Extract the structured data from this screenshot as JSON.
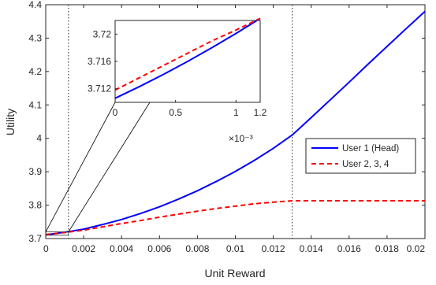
{
  "colors": {
    "series1": "#0000ff",
    "series2": "#ff0000",
    "axis": "#262626",
    "background": "#ffffff"
  },
  "chart_data": [
    {
      "type": "line",
      "xlabel": "Unit Reward",
      "ylabel": "Utility",
      "xlim": [
        0,
        0.02
      ],
      "ylim": [
        3.7,
        4.4
      ],
      "xticks": [
        "0",
        "0.002",
        "0.004",
        "0.006",
        "0.008",
        "0.01",
        "0.012",
        "0.014",
        "0.016",
        "0.018",
        "0.02"
      ],
      "yticks": [
        "3.7",
        "3.8",
        "3.9",
        "4",
        "4.1",
        "4.2",
        "4.3",
        "4.4"
      ],
      "grid": false,
      "legend_position": "right",
      "reference_lines_x": [
        0.0012,
        0.013
      ],
      "highlight_box": {
        "x": [
          0,
          0.0012
        ],
        "y": [
          3.71,
          3.72
        ]
      },
      "series": [
        {
          "name": "User 1 (Head)",
          "style": "solid",
          "x": [
            0,
            0.001,
            0.002,
            0.003,
            0.004,
            0.005,
            0.006,
            0.007,
            0.008,
            0.009,
            0.01,
            0.011,
            0.012,
            0.013,
            0.014,
            0.015,
            0.016,
            0.017,
            0.018,
            0.019,
            0.02
          ],
          "y": [
            3.711,
            3.719,
            3.728,
            3.742,
            3.757,
            3.775,
            3.795,
            3.818,
            3.843,
            3.871,
            3.901,
            3.934,
            3.97,
            4.01,
            4.062,
            4.115,
            4.168,
            4.222,
            4.275,
            4.328,
            4.38
          ]
        },
        {
          "name": "User 2, 3, 4",
          "style": "dashed",
          "x": [
            0,
            0.001,
            0.002,
            0.003,
            0.004,
            0.005,
            0.006,
            0.007,
            0.008,
            0.009,
            0.01,
            0.011,
            0.012,
            0.013,
            0.014,
            0.015,
            0.016,
            0.017,
            0.018,
            0.019,
            0.02
          ],
          "y": [
            3.712,
            3.718,
            3.725,
            3.735,
            3.745,
            3.754,
            3.764,
            3.773,
            3.782,
            3.79,
            3.797,
            3.804,
            3.809,
            3.813,
            3.813,
            3.813,
            3.813,
            3.813,
            3.813,
            3.813,
            3.813
          ]
        }
      ]
    },
    {
      "type": "line",
      "role": "inset",
      "xlim": [
        0,
        1.2
      ],
      "ylim": [
        3.71,
        3.722
      ],
      "xticks": [
        "0",
        "0.5",
        "1",
        "1.2"
      ],
      "yticks": [
        "3.712",
        "3.716",
        "3.72"
      ],
      "x_multiplier_label": "×10⁻³",
      "series": [
        {
          "style": "solid",
          "x": [
            0,
            0.2,
            0.4,
            0.6,
            0.8,
            1.0,
            1.2
          ],
          "y": [
            3.7106,
            3.7123,
            3.7141,
            3.716,
            3.718,
            3.7201,
            3.7223
          ]
        },
        {
          "style": "dashed",
          "x": [
            0,
            0.2,
            0.4,
            0.6,
            0.8,
            1.0,
            1.2
          ],
          "y": [
            3.7118,
            3.7136,
            3.7154,
            3.7172,
            3.719,
            3.7206,
            3.7223
          ]
        }
      ]
    }
  ]
}
